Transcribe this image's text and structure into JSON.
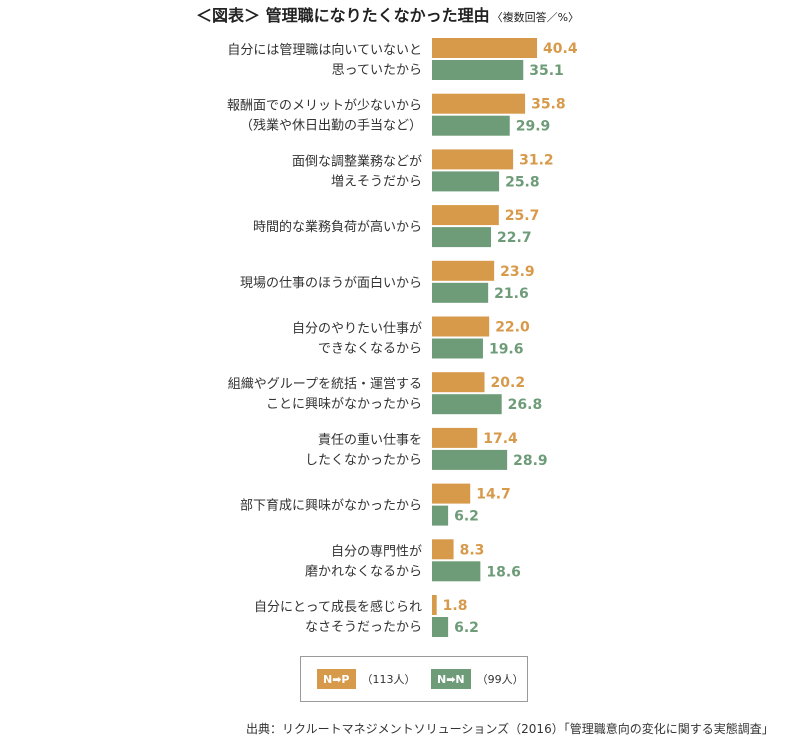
{
  "title": "＜図表＞ 管理職になりたくなかった理由",
  "subtitle": "〈複数回答／%〉",
  "colors": {
    "np": "#d79a4b",
    "nn": "#6e9c78",
    "np_label": "#d79a4b",
    "nn_label": "#6e9c78"
  },
  "chart_data": {
    "type": "bar",
    "orientation": "horizontal",
    "title": "管理職になりたくなかった理由",
    "categories": [
      [
        "自分には管理職は向いていないと",
        "思っていたから"
      ],
      [
        "報酬面でのメリットが少ないから",
        "（残業や休日出勤の手当など）"
      ],
      [
        "面倒な調整業務などが",
        "増えそうだから"
      ],
      [
        "時間的な業務負荷が高いから"
      ],
      [
        "現場の仕事のほうが面白いから"
      ],
      [
        "自分のやりたい仕事が",
        "できなくなるから"
      ],
      [
        "組織やグループを統括・運営する",
        "ことに興味がなかったから"
      ],
      [
        "責任の重い仕事を",
        "したくなかったから"
      ],
      [
        "部下育成に興味がなかったから"
      ],
      [
        "自分の専門性が",
        "磨かれなくなるから"
      ],
      [
        "自分にとって成長を感じられ",
        "なさそうだったから"
      ]
    ],
    "series": [
      {
        "name": "N➡P",
        "count_label": "（113人）",
        "values": [
          40.4,
          35.8,
          31.2,
          25.7,
          23.9,
          22.0,
          20.2,
          17.4,
          14.7,
          8.3,
          1.8
        ]
      },
      {
        "name": "N➡N",
        "count_label": "（99人）",
        "values": [
          35.1,
          29.9,
          25.8,
          22.7,
          21.6,
          19.6,
          26.8,
          28.9,
          6.2,
          18.6,
          6.2
        ]
      }
    ],
    "value_format": "one_decimal",
    "grid": false,
    "legend_position": "bottom"
  },
  "source": "出典：リクルートマネジメントソリューションズ（2016）「管理職意向の変化に関する実態調査」"
}
